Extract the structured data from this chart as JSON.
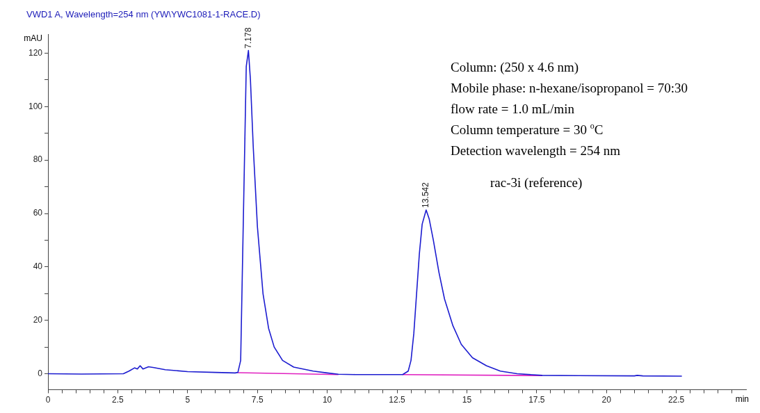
{
  "chart_data": {
    "type": "line",
    "title": "VWD1 A, Wavelength=254 nm (YW\\YWC1081-1-RACE.D)",
    "xlabel": "min",
    "ylabel": "mAU",
    "xlim": [
      0,
      25
    ],
    "ylim": [
      -6,
      127
    ],
    "xticks": [
      0,
      {
        "value": 0.5,
        "label": null
      },
      {
        "value": 1,
        "label": null
      },
      {
        "value": 1.5,
        "label": null
      },
      {
        "value": 2,
        "label": null
      },
      2.5,
      {
        "value": 3,
        "label": null
      },
      {
        "value": 3.5,
        "label": null
      },
      {
        "value": 4,
        "label": null
      },
      {
        "value": 4.5,
        "label": null
      },
      5,
      {
        "value": 5.5,
        "label": null
      },
      {
        "value": 6,
        "label": null
      },
      {
        "value": 6.5,
        "label": null
      },
      {
        "value": 7,
        "label": null
      },
      7.5,
      {
        "value": 8,
        "label": null
      },
      {
        "value": 8.5,
        "label": null
      },
      {
        "value": 9,
        "label": null
      },
      {
        "value": 9.5,
        "label": null
      },
      10,
      {
        "value": 10.5,
        "label": null
      },
      {
        "value": 11,
        "label": null
      },
      {
        "value": 11.5,
        "label": null
      },
      {
        "value": 12,
        "label": null
      },
      12.5,
      {
        "value": 13,
        "label": null
      },
      {
        "value": 13.5,
        "label": null
      },
      {
        "value": 14,
        "label": null
      },
      {
        "value": 14.5,
        "label": null
      },
      15,
      {
        "value": 15.5,
        "label": null
      },
      {
        "value": 16,
        "label": null
      },
      {
        "value": 16.5,
        "label": null
      },
      {
        "value": 17,
        "label": null
      },
      17.5,
      {
        "value": 18,
        "label": null
      },
      {
        "value": 18.5,
        "label": null
      },
      {
        "value": 19,
        "label": null
      },
      {
        "value": 19.5,
        "label": null
      },
      20,
      {
        "value": 20.5,
        "label": null
      },
      {
        "value": 21,
        "label": null
      },
      {
        "value": 21.5,
        "label": null
      },
      {
        "value": 22,
        "label": null
      },
      22.5,
      {
        "value": 23,
        "label": null
      },
      {
        "value": 23.5,
        "label": null
      },
      {
        "value": 24,
        "label": null
      },
      {
        "value": 24.5,
        "label": null
      }
    ],
    "yticks": [
      0,
      {
        "value": 10,
        "label": null
      },
      20,
      {
        "value": 30,
        "label": null
      },
      40,
      {
        "value": 50,
        "label": null
      },
      60,
      {
        "value": 70,
        "label": null
      },
      80,
      {
        "value": 90,
        "label": null
      },
      100,
      {
        "value": 110,
        "label": null
      },
      120
    ],
    "grid": false,
    "legend": false,
    "marker": "none",
    "line_style": "solid",
    "series": [
      {
        "color": "#1c1cd0",
        "x": [
          0,
          1.2,
          2.7,
          2.9,
          3.1,
          3.2,
          3.3,
          3.4,
          3.6,
          3.8,
          4.2,
          5,
          6,
          6.7,
          6.8,
          6.9,
          7.0,
          7.1,
          7.178,
          7.25,
          7.35,
          7.5,
          7.7,
          7.9,
          8.1,
          8.4,
          8.8,
          9.5,
          10,
          10.4,
          11,
          12,
          12.7,
          12.9,
          13.0,
          13.1,
          13.2,
          13.3,
          13.4,
          13.542,
          13.65,
          13.8,
          14.0,
          14.2,
          14.5,
          14.8,
          15.2,
          15.7,
          16.2,
          16.8,
          17.7,
          19,
          21,
          21.1,
          21.3,
          22.7
        ],
        "values": [
          0,
          -0.1,
          0,
          1,
          2.2,
          1.8,
          3,
          1.8,
          2.6,
          2.3,
          1.5,
          0.8,
          0.5,
          0.3,
          0.5,
          5,
          60,
          115,
          121,
          110,
          85,
          55,
          30,
          17,
          10,
          5,
          2.5,
          1,
          0.3,
          -0.2,
          -0.3,
          -0.3,
          -0.3,
          1,
          5,
          15,
          30,
          45,
          56,
          61.3,
          58,
          50,
          38,
          28,
          18,
          11,
          6,
          3,
          1,
          0,
          -0.6,
          -0.7,
          -0.8,
          -0.6,
          -0.8,
          -0.9
        ]
      },
      {
        "color": "#e020c0",
        "x": [
          6.8,
          10.4
        ],
        "values": [
          0.4,
          -0.3
        ]
      },
      {
        "color": "#e020c0",
        "x": [
          12.7,
          17.7
        ],
        "values": [
          -0.3,
          -0.7
        ]
      }
    ],
    "annotations": [
      {
        "text": "7.178",
        "x": 7.178,
        "y": 121
      },
      {
        "text": "13.542",
        "x": 13.542,
        "y": 61.3
      },
      "Column: (250 x 4.6 nm)",
      "Mobile phase: n-hexane/isopropanol = 70:30",
      "flow rate = 1.0 mL/min",
      "Column temperature = 30 $^{o}$C",
      "Detection wavelength = 254 nm",
      "rac-3i (reference)"
    ]
  }
}
